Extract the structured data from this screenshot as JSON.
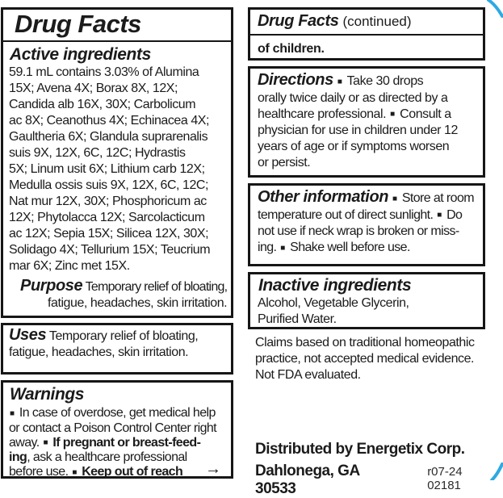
{
  "page": {
    "accent_blue": "#2fa9e1",
    "border_color": "#161616"
  },
  "left": {
    "title": "Drug Facts",
    "active": {
      "heading": "Active ingredients",
      "lines": [
        [
          "59.1 mL contains 3.03% of Alumina"
        ],
        [
          "15X; Avena 4X; Borax 8X, 12X;"
        ],
        [
          "Candida alb 16X, 30X; Carbolicum"
        ],
        [
          "ac 8X; Ceanothus 4X; Echinacea 4X;"
        ],
        [
          "Gaultheria 6X; Glandula suprarenalis"
        ],
        [
          "suis 9X, 12X, 6C, 12C; Hydrastis"
        ],
        [
          "5X; Linum usit 6X; Lithium carb 12X;"
        ],
        [
          "Medulla ossis suis 9X, 12X, 6C, 12C;"
        ],
        [
          "Nat mur 12X, 30X; Phosphoricum ac"
        ],
        [
          "12X; Phytolacca 12X; Sarcolacticum"
        ],
        [
          "ac 12X; Sepia 15X; Silicea 12X, 30X;"
        ],
        [
          "Solidago 4X; Tellurium 15X; Teucrium"
        ],
        [
          "mar 6X; Zinc met 15X."
        ]
      ]
    },
    "purpose": {
      "lines": [
        [
          {
            "t": "Purpose",
            "c": "h"
          },
          {
            "t": " Temporary relief of bloating,"
          }
        ],
        [
          "fatigue, headaches, skin irritation."
        ]
      ]
    },
    "uses": {
      "lines": [
        [
          {
            "t": "Uses",
            "c": "h"
          },
          {
            "t": " Temporary relief of bloating,"
          }
        ],
        [
          "fatigue, headaches, skin irritation."
        ]
      ]
    },
    "warnings": {
      "heading": "Warnings",
      "lines": [
        [
          "■ In case of overdose, get medical help"
        ],
        [
          "or contact a Poison Control Center right"
        ],
        [
          {
            "t": "away. ■ "
          },
          {
            "t": "If pregnant or breast-feed-",
            "c": "b"
          }
        ],
        [
          {
            "t": "ing",
            "c": "b"
          },
          {
            "t": ", ask a healthcare professional"
          }
        ],
        [
          {
            "t": "before use. ■ "
          },
          {
            "t": "Keep out of reach",
            "c": "b"
          },
          {
            "t": "→",
            "c": "arrow"
          }
        ]
      ]
    }
  },
  "right": {
    "header": {
      "title": "Drug Facts",
      "continued": "(continued)"
    },
    "of_children": "of children.",
    "directions": {
      "lines": [
        [
          {
            "t": "Directions",
            "c": "h"
          },
          {
            "t": " ■ Take 30 drops"
          }
        ],
        [
          "orally twice daily or as directed by a"
        ],
        [
          "healthcare professional. ■ Consult a"
        ],
        [
          "physician for use in children under 12"
        ],
        [
          "years of age or if symptoms worsen"
        ],
        [
          "or persist."
        ]
      ]
    },
    "other_information": {
      "lines": [
        [
          {
            "t": "Other information",
            "c": "h"
          },
          {
            "t": " ■ Store at room"
          }
        ],
        [
          "temperature out of direct sunlight. ■ Do"
        ],
        [
          "not use if neck wrap is broken or miss-"
        ],
        [
          "ing. ■ Shake well before use."
        ]
      ]
    },
    "inactive": {
      "heading": "Inactive ingredients",
      "lines": [
        [
          "Alcohol, Vegetable Glycerin,"
        ],
        [
          "Purified Water."
        ]
      ]
    },
    "claims": {
      "lines": [
        [
          "Claims based on traditional homeopathic"
        ],
        [
          "practice, not accepted medical evidence."
        ],
        [
          "Not FDA evaluated."
        ]
      ]
    },
    "footer": {
      "distributed_by": "Distributed by Energetix Corp.",
      "city": "Dahlonega, GA 30533",
      "code": "r07-24 02181"
    }
  }
}
